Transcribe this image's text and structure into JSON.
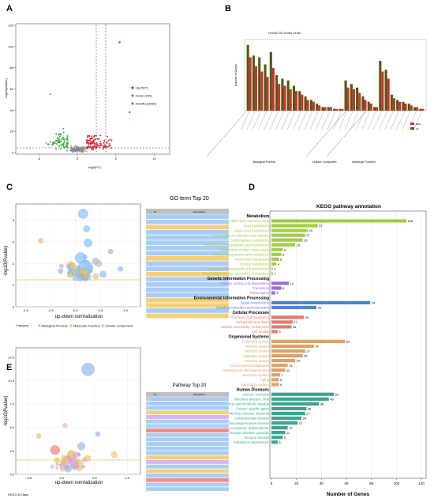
{
  "panels": {
    "a": "A",
    "b": "B",
    "c": "C",
    "d": "D",
    "e": "E"
  },
  "panel_a": {
    "ylabel": "-log10(pvalue)",
    "xlabel": "log2(FC)",
    "yticks": [
      "0",
      "20",
      "40",
      "60",
      "80",
      "100",
      "120"
    ],
    "xticks": [
      "-5",
      "0",
      "5",
      "10"
    ],
    "legend": [
      {
        "label": "Up (527)",
        "color": "#d7263d"
      },
      {
        "label": "Down (269)",
        "color": "#3cb043"
      },
      {
        "label": "NoDiff (23435)",
        "color": "#777777"
      }
    ]
  },
  "panel_b": {
    "title": "Level2 GO terms of list",
    "ylabel": "Number of Genes",
    "categories": [
      "Biological Process",
      "Cellular Component",
      "Molecular Function"
    ],
    "legend": [
      {
        "label": "DEG",
        "color": "#c9322a"
      },
      {
        "label": "All",
        "color": "#4d5a12"
      }
    ]
  },
  "panel_c": {
    "title": "GO term Top 20",
    "ylabel": "-log10(Pvalue)",
    "xlabel": "up-down normalization",
    "xticks": [
      "-1.0",
      "-0.5",
      "0.0",
      "0.5",
      "1.0"
    ],
    "yticks": [
      "0",
      "2",
      "4",
      "6",
      "8"
    ],
    "table_headers": [
      "ID",
      "Description"
    ],
    "legend_title": "Category",
    "legend": [
      {
        "label": "Biological Process",
        "color": "#8ec5ff"
      },
      {
        "label": "Molecular Function",
        "color": "#f2c45f"
      },
      {
        "label": "Cellular Component",
        "color": "#bdbdbd"
      }
    ]
  },
  "panel_d": {
    "title": "KEGG pathway annotation",
    "xlabel": "Number of Genes",
    "xticks": [
      "0",
      "20",
      "40",
      "60",
      "80",
      "100",
      "120"
    ],
    "groups": [
      {
        "name": "Metabolism",
        "color": "#a3cc47",
        "items": [
          {
            "label": "Global and overview maps",
            "value": 108
          },
          {
            "label": "Lipid metabolism",
            "value": 37
          },
          {
            "label": "Amino acid metabolism",
            "value": 29
          },
          {
            "label": "Metabolism of cofactors and vitamins",
            "value": 27
          },
          {
            "label": "Carbohydrate metabolism",
            "value": 25
          },
          {
            "label": "Xenobiotics biodegradation and metabolism",
            "value": 19
          },
          {
            "label": "Metabolism of other amino acids",
            "value": 9
          },
          {
            "label": "Glycan biosynthesis and metabolism",
            "value": 8
          },
          {
            "label": "Nucleotide metabolism",
            "value": 6
          },
          {
            "label": "Energy metabolism",
            "value": 4
          },
          {
            "label": "Metabolism of terpenoids and polyketides",
            "value": 1
          },
          {
            "label": "Biosynthesis of other secondary metabolites",
            "value": 1
          }
        ]
      },
      {
        "name": "Genetic Information Processing",
        "color": "#9b6bd6",
        "items": [
          {
            "label": "Folding, sorting and degradation",
            "value": 14
          },
          {
            "label": "Translation",
            "value": 8
          },
          {
            "label": "Transcription",
            "value": 3
          }
        ]
      },
      {
        "name": "Environmental Information Processing",
        "color": "#4a86d0",
        "items": [
          {
            "label": "Signal transduction",
            "value": 79
          },
          {
            "label": "Signaling molecules and interaction",
            "value": 36
          }
        ]
      },
      {
        "name": "Cellular Processes",
        "color": "#e07b70",
        "items": [
          {
            "label": "Transport and catabolism",
            "value": 26
          },
          {
            "label": "Cell growth and death",
            "value": 17
          },
          {
            "label": "Cellular community - eukaryotes",
            "value": 16
          },
          {
            "label": "Cell motility",
            "value": 5
          }
        ]
      },
      {
        "name": "Organismal Systems",
        "color": "#e0a066",
        "items": [
          {
            "label": "Endocrine system",
            "value": 59
          },
          {
            "label": "Immune system",
            "value": 34
          },
          {
            "label": "Nervous system",
            "value": 27
          },
          {
            "label": "Digestive system",
            "value": 25
          },
          {
            "label": "Sensory system",
            "value": 19
          },
          {
            "label": "Environmental adaptation",
            "value": 13
          },
          {
            "label": "Development and regeneration",
            "value": 11
          },
          {
            "label": "Excretory system",
            "value": 7
          },
          {
            "label": "Aging",
            "value": 6
          },
          {
            "label": "Circulatory system",
            "value": 6
          }
        ]
      },
      {
        "name": "Human Diseases",
        "color": "#3aa58e",
        "items": [
          {
            "label": "Cancer: overview",
            "value": 50
          },
          {
            "label": "Infectious disease: viral",
            "value": 46
          },
          {
            "label": "Endocrine and metabolic disease",
            "value": 38
          },
          {
            "label": "Cancer: specific types",
            "value": 28
          },
          {
            "label": "Infectious disease: bacterial",
            "value": 27
          },
          {
            "label": "Cardiovascular disease",
            "value": 24
          },
          {
            "label": "Neurodegenerative disease",
            "value": 21
          },
          {
            "label": "Drug resistance: antineoplastic",
            "value": 13
          },
          {
            "label": "Infectious disease: parasitic",
            "value": 11
          },
          {
            "label": "Immune disease",
            "value": 9
          },
          {
            "label": "Substance dependence",
            "value": 5
          }
        ]
      }
    ]
  },
  "panel_e": {
    "title": "Pathway Top 20",
    "ylabel": "-log10(Pvalue)",
    "xlabel": "up-down normalization",
    "xticks": [
      "-0.5",
      "0.0",
      "0.5",
      "1.0"
    ],
    "yticks": [
      "0.0",
      "2.5",
      "5.0",
      "7.5",
      "10.0",
      "12.5"
    ],
    "table_headers": [
      "ID",
      "Description"
    ],
    "legend_title": "KEGG A Class"
  },
  "colors": {
    "accent_yellow": "#e8a33d",
    "grid": "#e6e6e6"
  },
  "chart_data": [
    {
      "id": "A",
      "type": "scatter",
      "xlabel": "log2(FC)",
      "ylabel": "-log10(pvalue)",
      "xlim": [
        -8,
        12
      ],
      "ylim": [
        0,
        120
      ],
      "series": [
        {
          "name": "Up (527)",
          "color": "#d7263d"
        },
        {
          "name": "Down (269)",
          "color": "#3cb043"
        },
        {
          "name": "NoDiff (23435)",
          "color": "#777777"
        }
      ]
    },
    {
      "id": "B",
      "type": "bar",
      "title": "Level2 GO terms of list",
      "ylabel": "Number of Genes",
      "series": [
        {
          "name": "DEG"
        },
        {
          "name": "All"
        }
      ],
      "groups": [
        "Biological Process",
        "Cellular Component",
        "Molecular Function"
      ],
      "deg": [
        30,
        25,
        22,
        19,
        24,
        15,
        14,
        12,
        11,
        9,
        6,
        5,
        3,
        2,
        2,
        1,
        1,
        13,
        12,
        10,
        6,
        4,
        2,
        22,
        18,
        7,
        5,
        4,
        3,
        2,
        1
      ],
      "all": [
        37,
        31,
        30,
        26,
        33,
        20,
        18,
        17,
        14,
        11,
        8,
        6,
        4,
        2,
        2,
        1,
        1,
        17,
        15,
        13,
        8,
        5,
        2,
        28,
        23,
        9,
        6,
        5,
        4,
        2,
        1
      ]
    },
    {
      "id": "C",
      "type": "scatter",
      "title": "GO term Top 20",
      "xlabel": "up-down normalization",
      "ylabel": "-log10(Pvalue)",
      "xlim": [
        -1.2,
        1.3
      ],
      "ylim": [
        0,
        9.5
      ],
      "series": [
        {
          "name": "Biological Process",
          "color": "#8ec5ff"
        },
        {
          "name": "Molecular Function",
          "color": "#f2c45f"
        },
        {
          "name": "Cellular Component",
          "color": "#bdbdbd"
        }
      ]
    },
    {
      "id": "D",
      "type": "bar",
      "orientation": "horizontal",
      "title": "KEGG pathway annotation",
      "xlabel": "Number of Genes",
      "xlim": [
        0,
        120
      ]
    },
    {
      "id": "E",
      "type": "scatter",
      "title": "Pathway Top 20",
      "xlabel": "up-down normalization",
      "ylabel": "-log10(Pvalue)",
      "xlim": [
        -0.7,
        1.2
      ],
      "ylim": [
        0,
        13.5
      ]
    }
  ]
}
